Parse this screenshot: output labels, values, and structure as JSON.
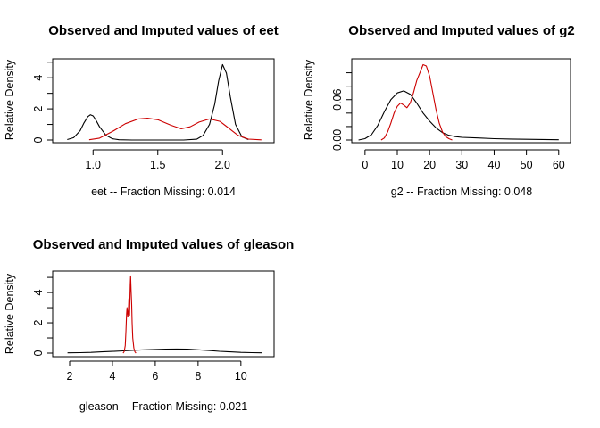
{
  "chart_data": [
    {
      "type": "line",
      "title": "Observed and Imputed values of eet",
      "xlabel": "eet   --  Fraction Missing: 0.014",
      "ylabel": "Relative Density",
      "xlim": [
        0.75,
        2.35
      ],
      "ylim": [
        0,
        5.1
      ],
      "xticks": [
        1.0,
        1.5,
        2.0
      ],
      "xtick_labels": [
        "1.0",
        "1.5",
        "2.0"
      ],
      "yticks": [
        0,
        2,
        4
      ],
      "ytick_labels": [
        "0",
        "2",
        "4"
      ],
      "ytick_minor": [
        1,
        3,
        5
      ],
      "series": [
        {
          "color": "#000000",
          "x": [
            0.8,
            0.85,
            0.9,
            0.93,
            0.96,
            0.98,
            1.0,
            1.02,
            1.05,
            1.1,
            1.15,
            1.2,
            1.3,
            1.5,
            1.7,
            1.8,
            1.85,
            1.9,
            1.94,
            1.97,
            2.0,
            2.03,
            2.06,
            2.1,
            2.15,
            2.2
          ],
          "y": [
            0.03,
            0.15,
            0.6,
            1.1,
            1.5,
            1.62,
            1.55,
            1.3,
            0.85,
            0.3,
            0.08,
            0.02,
            0.0,
            0.0,
            0.0,
            0.05,
            0.3,
            1.0,
            2.3,
            3.8,
            4.85,
            4.3,
            2.8,
            1.0,
            0.2,
            0.03
          ]
        },
        {
          "color": "#cc0000",
          "x": [
            0.97,
            1.05,
            1.15,
            1.25,
            1.35,
            1.42,
            1.5,
            1.6,
            1.68,
            1.75,
            1.82,
            1.9,
            1.98,
            2.05,
            2.12,
            2.2,
            2.3
          ],
          "y": [
            0.02,
            0.12,
            0.55,
            1.05,
            1.35,
            1.4,
            1.3,
            0.95,
            0.72,
            0.85,
            1.15,
            1.35,
            1.2,
            0.75,
            0.3,
            0.06,
            0.01
          ]
        }
      ]
    },
    {
      "type": "line",
      "title": "Observed and Imputed values of g2",
      "xlabel": "g2   --  Fraction Missing: 0.048",
      "ylabel": "Relative Density",
      "xlim": [
        -3,
        62
      ],
      "ylim": [
        0,
        0.118
      ],
      "xticks": [
        0,
        10,
        20,
        30,
        40,
        50,
        60
      ],
      "xtick_labels": [
        "0",
        "10",
        "20",
        "30",
        "40",
        "50",
        "60"
      ],
      "yticks": [
        0.0,
        0.06
      ],
      "ytick_labels": [
        "0.00",
        "0.06"
      ],
      "ytick_minor": [
        0.02,
        0.04,
        0.08,
        0.1
      ],
      "series": [
        {
          "color": "#000000",
          "x": [
            -2,
            0,
            2,
            4,
            6,
            8,
            10,
            12,
            14,
            16,
            18,
            20,
            22,
            24,
            26,
            28,
            30,
            35,
            40,
            45,
            50,
            55,
            60
          ],
          "y": [
            0.0,
            0.002,
            0.008,
            0.022,
            0.042,
            0.06,
            0.07,
            0.073,
            0.068,
            0.055,
            0.04,
            0.028,
            0.018,
            0.011,
            0.007,
            0.005,
            0.004,
            0.003,
            0.002,
            0.0015,
            0.001,
            0.0008,
            0.0004
          ]
        },
        {
          "color": "#cc0000",
          "x": [
            5,
            6,
            7,
            8,
            9,
            10,
            11,
            12,
            13,
            14,
            15,
            16,
            17,
            18,
            19,
            20,
            21,
            22,
            23,
            24,
            25,
            26,
            27
          ],
          "y": [
            0.0,
            0.003,
            0.012,
            0.025,
            0.04,
            0.05,
            0.055,
            0.052,
            0.048,
            0.055,
            0.07,
            0.088,
            0.1,
            0.112,
            0.11,
            0.095,
            0.07,
            0.045,
            0.025,
            0.012,
            0.005,
            0.002,
            0.0
          ]
        }
      ]
    },
    {
      "type": "line",
      "title": "Observed and Imputed values of gleason",
      "xlabel": "gleason   --  Fraction Missing: 0.021",
      "ylabel": "Relative Density",
      "xlim": [
        1.5,
        11.3
      ],
      "ylim": [
        0,
        5.3
      ],
      "xticks": [
        2,
        4,
        6,
        8,
        10
      ],
      "xtick_labels": [
        "2",
        "4",
        "6",
        "8",
        "10"
      ],
      "yticks": [
        0,
        2,
        4
      ],
      "ytick_labels": [
        "0",
        "2",
        "4"
      ],
      "ytick_minor": [
        1,
        3,
        5
      ],
      "series": [
        {
          "color": "#000000",
          "x": [
            1.9,
            2.5,
            3,
            3.5,
            4,
            4.5,
            5,
            5.5,
            6,
            6.5,
            7,
            7.5,
            8,
            8.5,
            9,
            9.5,
            10,
            10.5,
            11
          ],
          "y": [
            0.02,
            0.03,
            0.05,
            0.08,
            0.11,
            0.15,
            0.19,
            0.22,
            0.24,
            0.26,
            0.27,
            0.26,
            0.22,
            0.17,
            0.12,
            0.08,
            0.05,
            0.03,
            0.02
          ]
        },
        {
          "color": "#cc0000",
          "x": [
            4.5,
            4.55,
            4.6,
            4.63,
            4.66,
            4.68,
            4.7,
            4.72,
            4.75,
            4.77,
            4.8,
            4.83,
            4.85,
            4.87,
            4.9,
            4.92,
            4.95,
            5.0,
            5.05,
            5.1
          ],
          "y": [
            0.0,
            0.1,
            0.5,
            1.5,
            2.6,
            3.0,
            2.7,
            2.4,
            2.9,
            3.6,
            2.5,
            4.5,
            5.1,
            4.2,
            3.2,
            2.0,
            1.0,
            0.35,
            0.08,
            0.0
          ]
        }
      ]
    }
  ]
}
